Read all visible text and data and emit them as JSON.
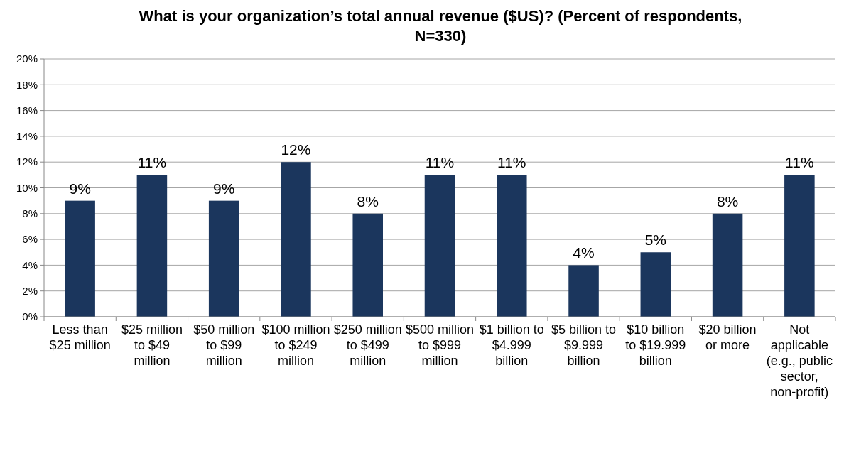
{
  "chart_data": {
    "type": "bar",
    "title": "What is your organization’s total annual revenue ($US)? (Percent of respondents, N=330)",
    "categories": [
      "Less than $25 million",
      "$25 million to $49 million",
      "$50 million to $99 million",
      "$100 million to $249 million",
      "$250 million to $499 million",
      "$500 million to $999 million",
      "$1 billion to $4.999 billion",
      "$5 billion to $9.999 billion",
      "$10 billion to $19.999 billion",
      "$20 billion or more",
      "Not applicable (e.g., public sector, non-profit)"
    ],
    "values": [
      9,
      11,
      9,
      12,
      8,
      11,
      11,
      4,
      5,
      8,
      11
    ],
    "value_labels": [
      "9%",
      "11%",
      "9%",
      "12%",
      "8%",
      "11%",
      "11%",
      "4%",
      "5%",
      "8%",
      "11%"
    ],
    "color": "#1b365d",
    "ylim": [
      0,
      20
    ],
    "yticks": [
      {
        "value": 0,
        "label": "0%"
      },
      {
        "value": 2,
        "label": "2%"
      },
      {
        "value": 4,
        "label": "4%"
      },
      {
        "value": 6,
        "label": "6%"
      },
      {
        "value": 8,
        "label": "8%"
      },
      {
        "value": 10,
        "label": "10%"
      },
      {
        "value": 12,
        "label": "12%"
      },
      {
        "value": 14,
        "label": "14%"
      },
      {
        "value": 16,
        "label": "16%"
      },
      {
        "value": 18,
        "label": "18%"
      },
      {
        "value": 20,
        "label": "20%"
      }
    ],
    "grid": true
  }
}
